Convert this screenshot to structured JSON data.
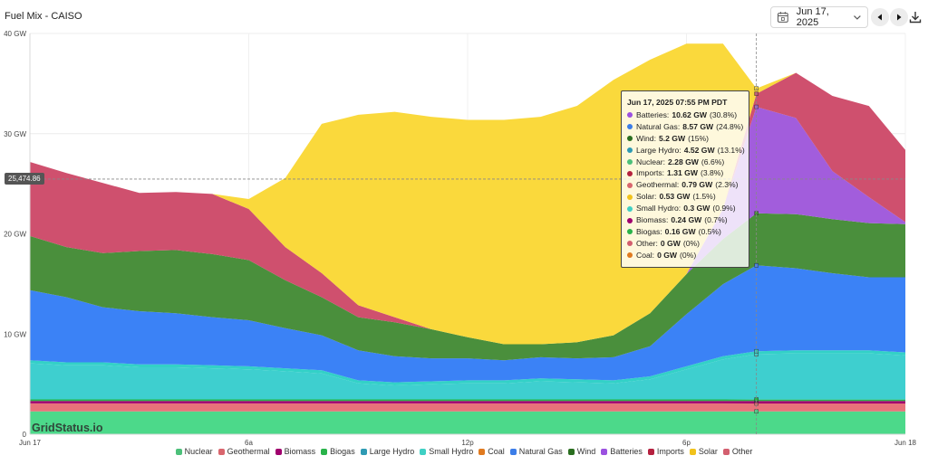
{
  "header": {
    "title": "Fuel Mix - CAISO",
    "date": "Jun 17, 2025"
  },
  "watermark": "GridStatus.io",
  "hover_readout": "25,474.86",
  "tooltip": {
    "title": "Jun 17, 2025 07:55 PM PDT",
    "rows": [
      {
        "name": "Batteries:",
        "value": "10.62 GW",
        "pct": "(30.8%)",
        "color": "#9b51e0"
      },
      {
        "name": "Natural Gas:",
        "value": "8.57 GW",
        "pct": "(24.8%)",
        "color": "#3b7de8"
      },
      {
        "name": "Wind:",
        "value": "5.2 GW",
        "pct": "(15%)",
        "color": "#2a6e1f"
      },
      {
        "name": "Large Hydro:",
        "value": "4.52 GW",
        "pct": "(13.1%)",
        "color": "#2e9ab3"
      },
      {
        "name": "Nuclear:",
        "value": "2.28 GW",
        "pct": "(6.6%)",
        "color": "#4cc07a"
      },
      {
        "name": "Imports:",
        "value": "1.31 GW",
        "pct": "(3.8%)",
        "color": "#b5213f"
      },
      {
        "name": "Geothermal:",
        "value": "0.79 GW",
        "pct": "(2.3%)",
        "color": "#d9666e"
      },
      {
        "name": "Solar:",
        "value": "0.53 GW",
        "pct": "(1.5%)",
        "color": "#f1c21b"
      },
      {
        "name": "Small Hydro:",
        "value": "0.3 GW",
        "pct": "(0.9%)",
        "color": "#3fd0c4"
      },
      {
        "name": "Biomass:",
        "value": "0.24 GW",
        "pct": "(0.7%)",
        "color": "#a0006e"
      },
      {
        "name": "Biogas:",
        "value": "0.16 GW",
        "pct": "(0.5%)",
        "color": "#29b34a"
      },
      {
        "name": "Other:",
        "value": "0 GW",
        "pct": "(0%)",
        "color": "#d35f6f"
      },
      {
        "name": "Coal:",
        "value": "0 GW",
        "pct": "(0%)",
        "color": "#e07a1f"
      }
    ]
  },
  "chart_data": {
    "type": "area",
    "title": "Fuel Mix - CAISO",
    "stacked": true,
    "x_unit": "hour of day",
    "xlim": [
      0,
      24
    ],
    "ylim": [
      0,
      40
    ],
    "y_unit": "GW",
    "y_ticks": [
      {
        "value": 0,
        "label": "0"
      },
      {
        "value": 10,
        "label": "10 GW"
      },
      {
        "value": 20,
        "label": "20 GW"
      },
      {
        "value": 30,
        "label": "30 GW"
      },
      {
        "value": 40,
        "label": "40 GW"
      }
    ],
    "x_ticks": [
      {
        "value": 0,
        "label": "Jun 17"
      },
      {
        "value": 6,
        "label": "6a"
      },
      {
        "value": 12,
        "label": "12p"
      },
      {
        "value": 18,
        "label": "6p"
      },
      {
        "value": 24,
        "label": "Jun 18"
      }
    ],
    "crosshair_x": 19.917,
    "crosshair_y": 25.47,
    "x": [
      0,
      1,
      2,
      3,
      4,
      5,
      6,
      7,
      8,
      9,
      10,
      11,
      12,
      13,
      14,
      15,
      16,
      17,
      18,
      19,
      19.917,
      21,
      22,
      23,
      24
    ],
    "series": [
      {
        "name": "Nuclear",
        "color": "#4cd98a",
        "values": [
          2.28,
          2.28,
          2.28,
          2.28,
          2.28,
          2.28,
          2.28,
          2.28,
          2.28,
          2.28,
          2.28,
          2.28,
          2.28,
          2.28,
          2.28,
          2.28,
          2.28,
          2.28,
          2.28,
          2.28,
          2.28,
          2.28,
          2.28,
          2.28,
          2.28
        ]
      },
      {
        "name": "Geothermal",
        "color": "#e8727a",
        "values": [
          0.8,
          0.8,
          0.8,
          0.8,
          0.8,
          0.8,
          0.8,
          0.8,
          0.8,
          0.8,
          0.8,
          0.8,
          0.8,
          0.8,
          0.8,
          0.8,
          0.8,
          0.8,
          0.8,
          0.8,
          0.79,
          0.79,
          0.79,
          0.79,
          0.79
        ]
      },
      {
        "name": "Biomass",
        "color": "#a0006e",
        "values": [
          0.24,
          0.24,
          0.24,
          0.24,
          0.24,
          0.24,
          0.24,
          0.24,
          0.24,
          0.24,
          0.24,
          0.24,
          0.24,
          0.24,
          0.24,
          0.24,
          0.24,
          0.24,
          0.24,
          0.24,
          0.24,
          0.24,
          0.24,
          0.24,
          0.24
        ]
      },
      {
        "name": "Biogas",
        "color": "#29b34a",
        "values": [
          0.16,
          0.16,
          0.16,
          0.16,
          0.16,
          0.16,
          0.16,
          0.16,
          0.16,
          0.16,
          0.16,
          0.16,
          0.16,
          0.16,
          0.16,
          0.16,
          0.16,
          0.16,
          0.16,
          0.16,
          0.16,
          0.16,
          0.16,
          0.16,
          0.16
        ]
      },
      {
        "name": "Large Hydro",
        "color": "#3ecfcf",
        "values": [
          3.6,
          3.4,
          3.4,
          3.2,
          3.2,
          3.1,
          3.0,
          2.8,
          2.6,
          1.6,
          1.4,
          1.5,
          1.6,
          1.6,
          1.8,
          1.7,
          1.6,
          2.0,
          3.0,
          4.0,
          4.52,
          4.6,
          4.6,
          4.6,
          4.4
        ]
      },
      {
        "name": "Small Hydro",
        "color": "#33d1c7",
        "values": [
          0.3,
          0.3,
          0.3,
          0.3,
          0.3,
          0.3,
          0.3,
          0.3,
          0.3,
          0.3,
          0.3,
          0.3,
          0.3,
          0.3,
          0.3,
          0.3,
          0.3,
          0.3,
          0.3,
          0.3,
          0.3,
          0.3,
          0.3,
          0.3,
          0.3
        ]
      },
      {
        "name": "Coal",
        "color": "#e07a1f",
        "values": [
          0,
          0,
          0,
          0,
          0,
          0,
          0,
          0,
          0,
          0,
          0,
          0,
          0,
          0,
          0,
          0,
          0,
          0,
          0,
          0,
          0,
          0,
          0,
          0,
          0
        ]
      },
      {
        "name": "Natural Gas",
        "color": "#3b82f6",
        "values": [
          7.0,
          6.5,
          5.5,
          5.3,
          5.1,
          4.8,
          4.6,
          4.0,
          3.5,
          3.0,
          2.6,
          2.3,
          2.2,
          2.0,
          2.1,
          2.1,
          2.3,
          3.0,
          5.2,
          7.2,
          8.57,
          8.2,
          7.7,
          7.3,
          7.5
        ]
      },
      {
        "name": "Wind",
        "color": "#4a8f3c",
        "values": [
          5.4,
          5.0,
          5.4,
          6.0,
          6.3,
          6.3,
          6.0,
          4.8,
          3.8,
          3.3,
          3.4,
          2.9,
          2.1,
          1.6,
          1.3,
          1.6,
          2.2,
          3.3,
          4.0,
          4.5,
          5.2,
          5.4,
          5.4,
          5.4,
          5.3
        ]
      },
      {
        "name": "Batteries",
        "color": "#a25ddc",
        "values": [
          0,
          0,
          0,
          0,
          0,
          0,
          0,
          0,
          0,
          0,
          0,
          0,
          0,
          0,
          0,
          0,
          0,
          0,
          0,
          3.0,
          10.62,
          9.6,
          4.8,
          2.6,
          0.2
        ]
      },
      {
        "name": "Imports",
        "color": "#cf506e",
        "values": [
          7.4,
          7.4,
          7.0,
          5.8,
          5.8,
          6.0,
          5.1,
          3.3,
          2.4,
          1.2,
          0.5,
          0.0,
          0.0,
          0.0,
          0.0,
          0.0,
          0.0,
          0.0,
          0.0,
          0.0,
          1.31,
          4.5,
          7.5,
          9.1,
          7.2
        ]
      },
      {
        "name": "Solar",
        "color": "#fad93c",
        "values": [
          0,
          0,
          0,
          0,
          0,
          0,
          1.0,
          6.9,
          14.9,
          19.0,
          20.5,
          21.2,
          21.7,
          22.4,
          22.7,
          23.6,
          25.5,
          25.3,
          23.0,
          16.5,
          0.53,
          0,
          0,
          0,
          0
        ]
      },
      {
        "name": "Other",
        "color": "#d35f6f",
        "values": [
          0,
          0,
          0,
          0,
          0,
          0,
          0,
          0,
          0,
          0,
          0,
          0,
          0,
          0,
          0,
          0,
          0,
          0,
          0,
          0,
          0,
          0,
          0,
          0,
          0
        ]
      }
    ]
  },
  "legend": [
    {
      "label": "Nuclear",
      "color": "#4cc07a"
    },
    {
      "label": "Geothermal",
      "color": "#d9666e"
    },
    {
      "label": "Biomass",
      "color": "#a0006e"
    },
    {
      "label": "Biogas",
      "color": "#29b34a"
    },
    {
      "label": "Large Hydro",
      "color": "#2e9ab3"
    },
    {
      "label": "Small Hydro",
      "color": "#3fd0c4"
    },
    {
      "label": "Coal",
      "color": "#e07a1f"
    },
    {
      "label": "Natural Gas",
      "color": "#3b7de8"
    },
    {
      "label": "Wind",
      "color": "#2a6e1f"
    },
    {
      "label": "Batteries",
      "color": "#9b51e0"
    },
    {
      "label": "Imports",
      "color": "#b5213f"
    },
    {
      "label": "Solar",
      "color": "#f1c21b"
    },
    {
      "label": "Other",
      "color": "#d35f6f"
    }
  ]
}
